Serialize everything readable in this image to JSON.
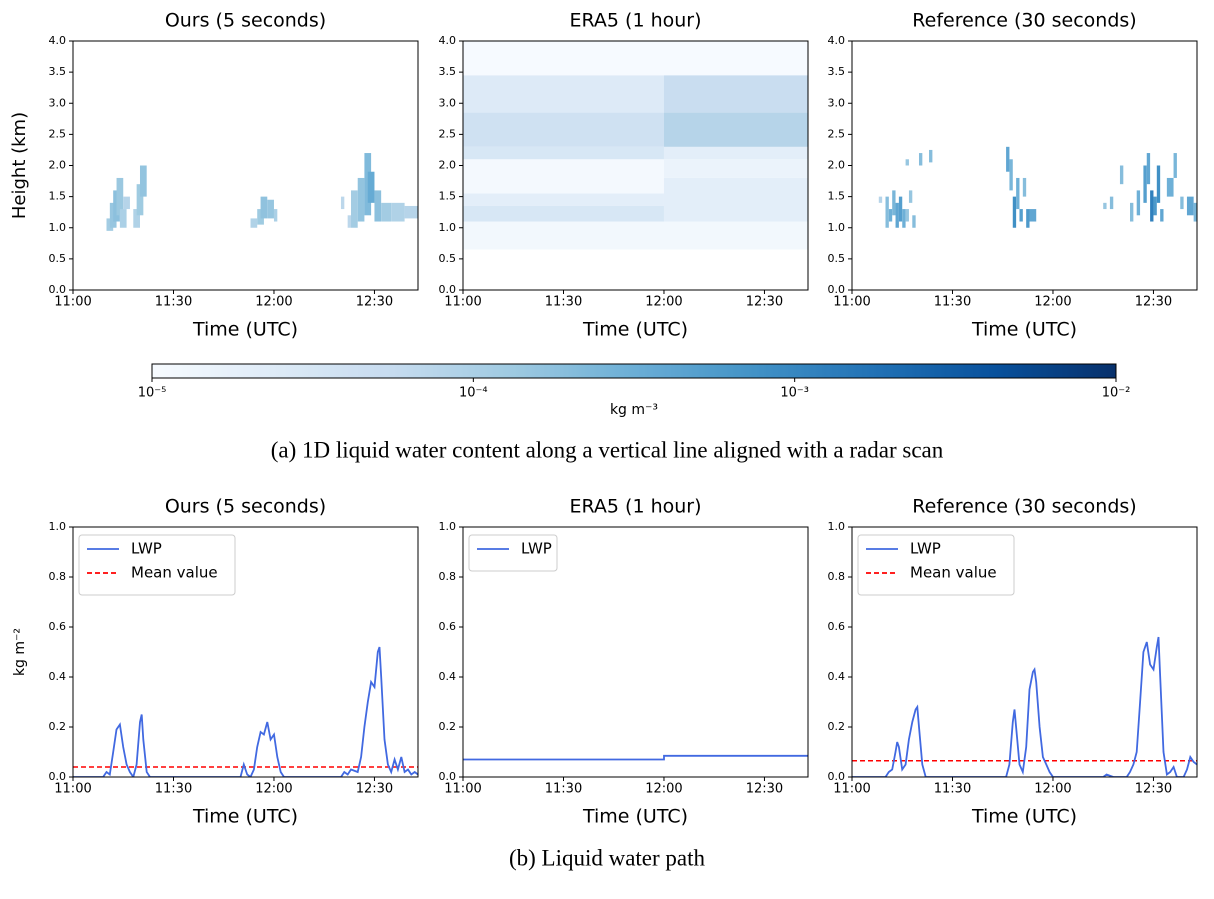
{
  "chart_data": [
    {
      "type": "heatmap",
      "title": "Ours (5 seconds)",
      "xlabel": "Time (UTC)",
      "ylabel": "Height (km)",
      "xlim": [
        0,
        103
      ],
      "xticks": [
        {
          "value": 0,
          "label": "11:00"
        },
        {
          "value": 30,
          "label": "11:30"
        },
        {
          "value": 60,
          "label": "12:00"
        },
        {
          "value": 90,
          "label": "12:30"
        }
      ],
      "ylim": [
        0,
        4
      ],
      "yticks": [
        {
          "value": 0,
          "label": "0.0"
        },
        {
          "value": 0.5,
          "label": "0.5"
        },
        {
          "value": 1,
          "label": "1.0"
        },
        {
          "value": 1.5,
          "label": "1.5"
        },
        {
          "value": 2,
          "label": "2.0"
        },
        {
          "value": 2.5,
          "label": "2.5"
        },
        {
          "value": 3,
          "label": "3.0"
        },
        {
          "value": 3.5,
          "label": "3.5"
        },
        {
          "value": 4,
          "label": "4.0"
        }
      ],
      "cells": [
        [
          10,
          12,
          0.95,
          1.15,
          0.00012
        ],
        [
          11,
          13,
          1.0,
          1.4,
          0.00015
        ],
        [
          12,
          14,
          1.1,
          1.6,
          0.00018
        ],
        [
          13,
          15,
          1.2,
          1.8,
          0.00014
        ],
        [
          14,
          16,
          1.0,
          1.3,
          0.0001
        ],
        [
          15,
          17,
          1.3,
          1.5,
          8e-05
        ],
        [
          18,
          20,
          1.0,
          1.3,
          9e-05
        ],
        [
          19,
          21,
          1.2,
          1.7,
          0.00013
        ],
        [
          20,
          22,
          1.5,
          2.0,
          0.00016
        ],
        [
          53,
          55,
          1.0,
          1.15,
          9e-05
        ],
        [
          55,
          57,
          1.05,
          1.3,
          0.00013
        ],
        [
          56,
          58,
          1.15,
          1.5,
          0.00017
        ],
        [
          58,
          60,
          1.15,
          1.45,
          0.00015
        ],
        [
          60,
          61,
          1.1,
          1.3,
          0.0001
        ],
        [
          80,
          81,
          1.3,
          1.5,
          7e-05
        ],
        [
          82,
          83,
          1.0,
          1.2,
          7e-05
        ],
        [
          83,
          85,
          1.0,
          1.6,
          0.00012
        ],
        [
          85,
          87,
          1.1,
          1.8,
          0.00016
        ],
        [
          87,
          89,
          1.2,
          2.2,
          0.00022
        ],
        [
          88,
          90,
          1.4,
          1.9,
          0.00035
        ],
        [
          90,
          92,
          1.1,
          1.6,
          0.00018
        ],
        [
          92,
          95,
          1.1,
          1.4,
          0.00012
        ],
        [
          95,
          99,
          1.1,
          1.4,
          9e-05
        ],
        [
          99,
          103,
          1.15,
          1.35,
          8e-05
        ]
      ]
    },
    {
      "type": "heatmap",
      "title": "ERA5 (1 hour)",
      "xlabel": "Time (UTC)",
      "xlim": [
        0,
        103
      ],
      "xticks": [
        {
          "value": 0,
          "label": "11:00"
        },
        {
          "value": 30,
          "label": "11:30"
        },
        {
          "value": 60,
          "label": "12:00"
        },
        {
          "value": 90,
          "label": "12:30"
        }
      ],
      "ylim": [
        0,
        4
      ],
      "yticks": [
        {
          "value": 0,
          "label": "0.0"
        },
        {
          "value": 0.5,
          "label": "0.5"
        },
        {
          "value": 1,
          "label": "1.0"
        },
        {
          "value": 1.5,
          "label": "1.5"
        },
        {
          "value": 2,
          "label": "2.0"
        },
        {
          "value": 2.5,
          "label": "2.5"
        },
        {
          "value": 3,
          "label": "3.0"
        },
        {
          "value": 3.5,
          "label": "3.5"
        },
        {
          "value": 4,
          "label": "4.0"
        }
      ],
      "cells": [
        [
          0,
          60,
          0.65,
          1.1,
          1.2e-05
        ],
        [
          0,
          60,
          1.1,
          1.35,
          3e-05
        ],
        [
          0,
          60,
          1.35,
          1.55,
          2e-05
        ],
        [
          0,
          60,
          1.55,
          2.1,
          1.1e-05
        ],
        [
          0,
          60,
          2.1,
          2.3,
          3e-05
        ],
        [
          0,
          60,
          2.3,
          2.85,
          4e-05
        ],
        [
          0,
          60,
          2.85,
          3.45,
          2.5e-05
        ],
        [
          0,
          60,
          3.45,
          4.0,
          1.05e-05
        ],
        [
          60,
          103,
          0.65,
          1.1,
          1.2e-05
        ],
        [
          60,
          103,
          1.1,
          1.8,
          2e-05
        ],
        [
          60,
          103,
          1.8,
          2.1,
          1.5e-05
        ],
        [
          60,
          103,
          2.1,
          2.3,
          2e-05
        ],
        [
          60,
          103,
          2.3,
          2.85,
          8e-05
        ],
        [
          60,
          103,
          2.85,
          3.45,
          5e-05
        ],
        [
          60,
          103,
          3.45,
          4.0,
          1.05e-05
        ]
      ]
    },
    {
      "type": "heatmap",
      "title": "Reference (30 seconds)",
      "xlabel": "Time (UTC)",
      "xlim": [
        0,
        103
      ],
      "xticks": [
        {
          "value": 0,
          "label": "11:00"
        },
        {
          "value": 30,
          "label": "11:30"
        },
        {
          "value": 60,
          "label": "12:00"
        },
        {
          "value": 90,
          "label": "12:30"
        }
      ],
      "ylim": [
        0,
        4
      ],
      "yticks": [
        {
          "value": 0,
          "label": "0.0"
        },
        {
          "value": 0.5,
          "label": "0.5"
        },
        {
          "value": 1,
          "label": "1.0"
        },
        {
          "value": 1.5,
          "label": "1.5"
        },
        {
          "value": 2,
          "label": "2.0"
        },
        {
          "value": 2.5,
          "label": "2.5"
        },
        {
          "value": 3,
          "label": "3.0"
        },
        {
          "value": 3.5,
          "label": "3.5"
        },
        {
          "value": 4,
          "label": "4.0"
        }
      ],
      "cells": [
        [
          8,
          9,
          1.4,
          1.5,
          8e-05
        ],
        [
          10,
          11,
          1.0,
          1.5,
          0.0002
        ],
        [
          11,
          12,
          1.1,
          1.3,
          0.0003
        ],
        [
          12,
          13,
          1.2,
          1.6,
          0.00025
        ],
        [
          13,
          14,
          1.0,
          1.4,
          0.0004
        ],
        [
          14,
          15,
          1.1,
          1.5,
          0.0005
        ],
        [
          15,
          16,
          1.0,
          1.3,
          0.0003
        ],
        [
          16,
          17,
          1.1,
          1.3,
          0.00015
        ],
        [
          17,
          18,
          1.4,
          1.6,
          0.00015
        ],
        [
          18,
          19,
          1.0,
          1.2,
          0.0002
        ],
        [
          20,
          21,
          2.0,
          2.2,
          0.0002
        ],
        [
          16,
          17,
          2.0,
          2.1,
          0.00015
        ],
        [
          23,
          24,
          2.05,
          2.25,
          0.0002
        ],
        [
          46,
          47,
          1.9,
          2.3,
          0.0004
        ],
        [
          47,
          48,
          1.6,
          2.1,
          0.00025
        ],
        [
          48,
          49,
          1.0,
          1.5,
          0.0008
        ],
        [
          49,
          50,
          1.3,
          1.8,
          0.0003
        ],
        [
          50,
          51,
          1.1,
          1.3,
          0.0005
        ],
        [
          51,
          52,
          1.5,
          1.8,
          0.0002
        ],
        [
          52,
          53,
          1.0,
          1.3,
          0.0006
        ],
        [
          53,
          55,
          1.1,
          1.3,
          0.0004
        ],
        [
          75,
          76,
          1.3,
          1.4,
          0.00015
        ],
        [
          77,
          78,
          1.3,
          1.5,
          0.0002
        ],
        [
          80,
          81,
          1.7,
          2.0,
          0.0002
        ],
        [
          83,
          84,
          1.1,
          1.4,
          0.0002
        ],
        [
          85,
          86,
          1.2,
          1.6,
          0.0003
        ],
        [
          87,
          88,
          1.4,
          2.0,
          0.0005
        ],
        [
          88,
          89,
          1.7,
          2.2,
          0.0004
        ],
        [
          89,
          90,
          1.1,
          1.6,
          0.0012
        ],
        [
          90,
          91,
          1.2,
          1.5,
          0.0006
        ],
        [
          91,
          92,
          1.4,
          2.0,
          0.0008
        ],
        [
          92,
          93,
          1.1,
          1.3,
          0.0004
        ],
        [
          94,
          96,
          1.5,
          1.8,
          0.0003
        ],
        [
          96,
          97,
          1.8,
          2.2,
          0.00025
        ],
        [
          98,
          99,
          1.3,
          1.5,
          0.0002
        ],
        [
          100,
          102,
          1.2,
          1.5,
          0.0004
        ],
        [
          102,
          103,
          1.1,
          1.4,
          0.00025
        ]
      ]
    },
    {
      "type": "line",
      "title": "Ours (5 seconds)",
      "xlabel": "Time (UTC)",
      "ylabel": "kg m⁻²",
      "xlim": [
        0,
        103
      ],
      "xticks": [
        {
          "value": 0,
          "label": "11:00"
        },
        {
          "value": 30,
          "label": "11:30"
        },
        {
          "value": 60,
          "label": "12:00"
        },
        {
          "value": 90,
          "label": "12:30"
        }
      ],
      "ylim": [
        0,
        1
      ],
      "yticks": [
        {
          "value": 0,
          "label": "0.0"
        },
        {
          "value": 0.2,
          "label": "0.2"
        },
        {
          "value": 0.4,
          "label": "0.4"
        },
        {
          "value": 0.6,
          "label": "0.6"
        },
        {
          "value": 0.8,
          "label": "0.8"
        },
        {
          "value": 1,
          "label": "1.0"
        }
      ],
      "series": [
        {
          "name": "LWP",
          "color": "#4169e1",
          "x": [
            0,
            9,
            10,
            11,
            12,
            13,
            14,
            15,
            16,
            17,
            18,
            19,
            20,
            20.5,
            21,
            22,
            23,
            50,
            51,
            52,
            53,
            54,
            55,
            56,
            57,
            58,
            59,
            60,
            61,
            62,
            63,
            80,
            81,
            82,
            83,
            85,
            86,
            87,
            88,
            89,
            90,
            91,
            91.5,
            92,
            93,
            94,
            95,
            96,
            97,
            98,
            99,
            100,
            101,
            102,
            103
          ],
          "values": [
            0,
            0,
            0.02,
            0.01,
            0.1,
            0.19,
            0.21,
            0.12,
            0.05,
            0.02,
            0,
            0.05,
            0.22,
            0.25,
            0.15,
            0.02,
            0,
            0,
            0.05,
            0.01,
            0,
            0.03,
            0.12,
            0.18,
            0.17,
            0.22,
            0.15,
            0.17,
            0.08,
            0.02,
            0,
            0,
            0.02,
            0.01,
            0.03,
            0.02,
            0.08,
            0.2,
            0.3,
            0.38,
            0.36,
            0.5,
            0.52,
            0.4,
            0.15,
            0.05,
            0.02,
            0.07,
            0.03,
            0.08,
            0.02,
            0.03,
            0.01,
            0.02,
            0.01
          ]
        }
      ],
      "hlines": [
        {
          "name": "Mean value",
          "color": "#ff0000",
          "value": 0.04
        }
      ]
    },
    {
      "type": "line",
      "title": "ERA5 (1 hour)",
      "xlabel": "Time (UTC)",
      "xlim": [
        0,
        103
      ],
      "xticks": [
        {
          "value": 0,
          "label": "11:00"
        },
        {
          "value": 30,
          "label": "11:30"
        },
        {
          "value": 60,
          "label": "12:00"
        },
        {
          "value": 90,
          "label": "12:30"
        }
      ],
      "ylim": [
        0,
        1
      ],
      "yticks": [
        {
          "value": 0,
          "label": "0.0"
        },
        {
          "value": 0.2,
          "label": "0.2"
        },
        {
          "value": 0.4,
          "label": "0.4"
        },
        {
          "value": 0.6,
          "label": "0.6"
        },
        {
          "value": 0.8,
          "label": "0.8"
        },
        {
          "value": 1,
          "label": "1.0"
        }
      ],
      "series": [
        {
          "name": "LWP",
          "color": "#4169e1",
          "x": [
            0,
            60,
            60,
            103
          ],
          "values": [
            0.07,
            0.07,
            0.085,
            0.085
          ]
        }
      ]
    },
    {
      "type": "line",
      "title": "Reference (30 seconds)",
      "xlabel": "Time (UTC)",
      "xlim": [
        0,
        103
      ],
      "xticks": [
        {
          "value": 0,
          "label": "11:00"
        },
        {
          "value": 30,
          "label": "11:30"
        },
        {
          "value": 60,
          "label": "12:00"
        },
        {
          "value": 90,
          "label": "12:30"
        }
      ],
      "ylim": [
        0,
        1
      ],
      "yticks": [
        {
          "value": 0,
          "label": "0.0"
        },
        {
          "value": 0.2,
          "label": "0.2"
        },
        {
          "value": 0.4,
          "label": "0.4"
        },
        {
          "value": 0.6,
          "label": "0.6"
        },
        {
          "value": 0.8,
          "label": "0.8"
        },
        {
          "value": 1,
          "label": "1.0"
        }
      ],
      "series": [
        {
          "name": "LWP",
          "color": "#4169e1",
          "x": [
            0,
            10,
            11,
            12,
            13,
            13.5,
            14,
            15,
            16,
            17,
            18,
            19,
            19.5,
            20,
            21,
            22,
            46,
            47,
            48,
            48.5,
            49,
            50,
            51,
            52,
            53,
            54,
            54.5,
            55,
            56,
            57,
            58,
            59,
            60,
            75,
            76,
            78,
            82,
            83,
            84,
            85,
            86,
            87,
            88,
            89,
            90,
            91,
            91.5,
            92,
            93,
            94,
            95,
            96,
            97,
            99,
            100,
            101,
            102,
            103
          ],
          "values": [
            0,
            0,
            0.02,
            0.03,
            0.1,
            0.14,
            0.12,
            0.03,
            0.05,
            0.15,
            0.22,
            0.27,
            0.28,
            0.2,
            0.05,
            0,
            0,
            0.05,
            0.22,
            0.27,
            0.2,
            0.05,
            0.02,
            0.12,
            0.35,
            0.42,
            0.43,
            0.38,
            0.2,
            0.08,
            0.05,
            0.02,
            0,
            0,
            0.01,
            0,
            0,
            0.02,
            0.05,
            0.1,
            0.3,
            0.5,
            0.54,
            0.45,
            0.43,
            0.52,
            0.56,
            0.4,
            0.1,
            0.01,
            0.02,
            0.04,
            0,
            0,
            0.03,
            0.08,
            0.06,
            0.05
          ]
        }
      ],
      "hlines": [
        {
          "name": "Mean value",
          "color": "#ff0000",
          "value": 0.065
        }
      ]
    }
  ],
  "colorbar": {
    "label": "kg m⁻³",
    "log": true,
    "lim": [
      1e-05,
      0.01
    ],
    "ticks": [
      {
        "value": 1e-05,
        "label": "10⁻⁵"
      },
      {
        "value": 0.0001,
        "label": "10⁻⁴"
      },
      {
        "value": 0.001,
        "label": "10⁻³"
      },
      {
        "value": 0.01,
        "label": "10⁻²"
      }
    ]
  },
  "captions": [
    "(a) 1D liquid water content along a vertical line aligned with a radar scan",
    "(b) Liquid water path"
  ]
}
